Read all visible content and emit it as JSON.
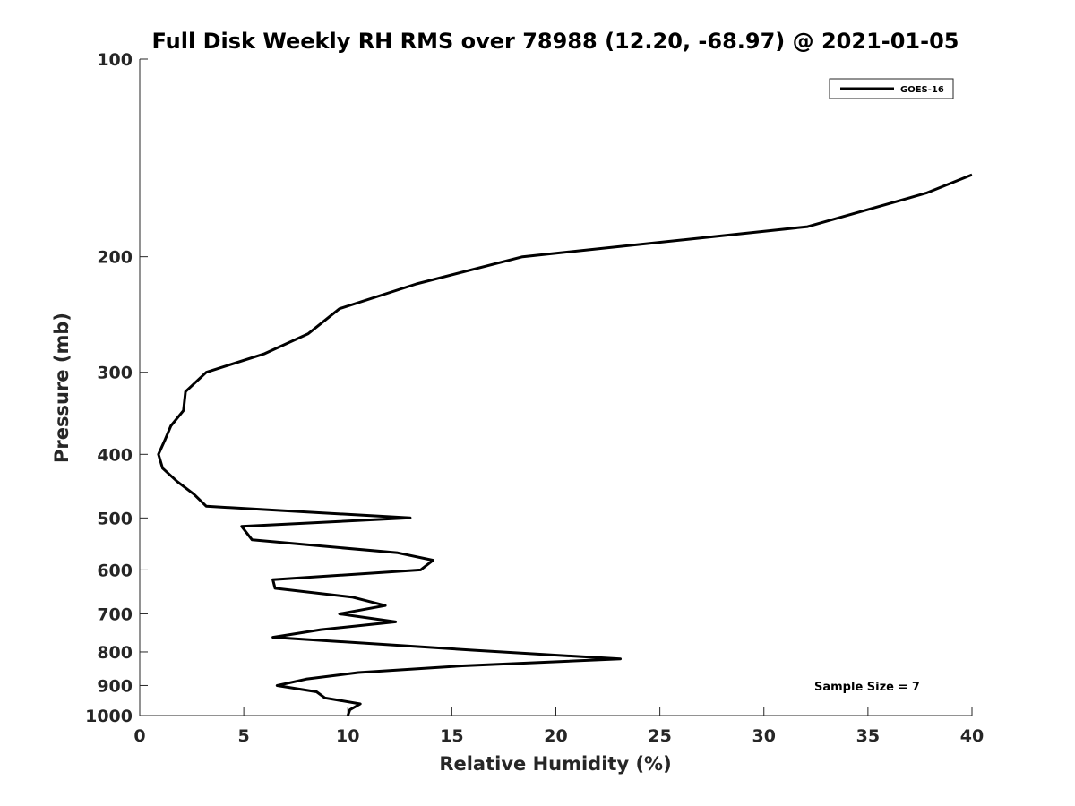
{
  "chart_data": {
    "type": "line",
    "title": "Full Disk Weekly RH RMS over 78988 (12.20, -68.97) @ 2021-01-05",
    "xlabel": "Relative Humidity (%)",
    "ylabel": "Pressure (mb)",
    "xlim": [
      0,
      40
    ],
    "ylim": [
      100,
      1000
    ],
    "y_scale": "log",
    "y_reversed": true,
    "grid": false,
    "legend_position": "top-right",
    "x_ticks": [
      0,
      5,
      10,
      15,
      20,
      25,
      30,
      35,
      40
    ],
    "x_tick_labels": [
      "0",
      "5",
      "10",
      "15",
      "20",
      "25",
      "30",
      "35",
      "40"
    ],
    "y_ticks": [
      100,
      200,
      300,
      400,
      500,
      600,
      700,
      800,
      900,
      1000
    ],
    "y_tick_labels": [
      "100",
      "200",
      "300",
      "400",
      "500",
      "600",
      "700",
      "800",
      "900",
      "1000"
    ],
    "series": [
      {
        "name": "GOES-16",
        "color": "#000000",
        "points": [
          [
            40.0,
            150
          ],
          [
            37.8,
            160
          ],
          [
            32.1,
            180
          ],
          [
            18.4,
            200
          ],
          [
            13.3,
            220
          ],
          [
            9.6,
            240
          ],
          [
            8.1,
            262
          ],
          [
            6.0,
            281
          ],
          [
            3.2,
            300
          ],
          [
            2.2,
            321
          ],
          [
            2.1,
            343
          ],
          [
            1.5,
            362
          ],
          [
            1.2,
            381
          ],
          [
            0.9,
            400
          ],
          [
            1.1,
            420
          ],
          [
            1.8,
            440
          ],
          [
            2.6,
            460
          ],
          [
            3.2,
            480
          ],
          [
            13.0,
            500
          ],
          [
            4.9,
            515
          ],
          [
            5.4,
            540
          ],
          [
            12.4,
            565
          ],
          [
            14.1,
            580
          ],
          [
            13.5,
            600
          ],
          [
            6.4,
            621
          ],
          [
            6.5,
            640
          ],
          [
            10.2,
            660
          ],
          [
            11.8,
            680
          ],
          [
            9.6,
            700
          ],
          [
            12.3,
            720
          ],
          [
            8.7,
            740
          ],
          [
            6.4,
            760
          ],
          [
            16.0,
            795
          ],
          [
            23.1,
            820
          ],
          [
            15.5,
            840
          ],
          [
            10.5,
            860
          ],
          [
            8.0,
            880
          ],
          [
            6.6,
            900
          ],
          [
            8.5,
            920
          ],
          [
            8.9,
            940
          ],
          [
            10.6,
            960
          ],
          [
            10.1,
            980
          ],
          [
            10.0,
            1000
          ]
        ]
      }
    ],
    "annotation": "Sample Size = 7"
  }
}
